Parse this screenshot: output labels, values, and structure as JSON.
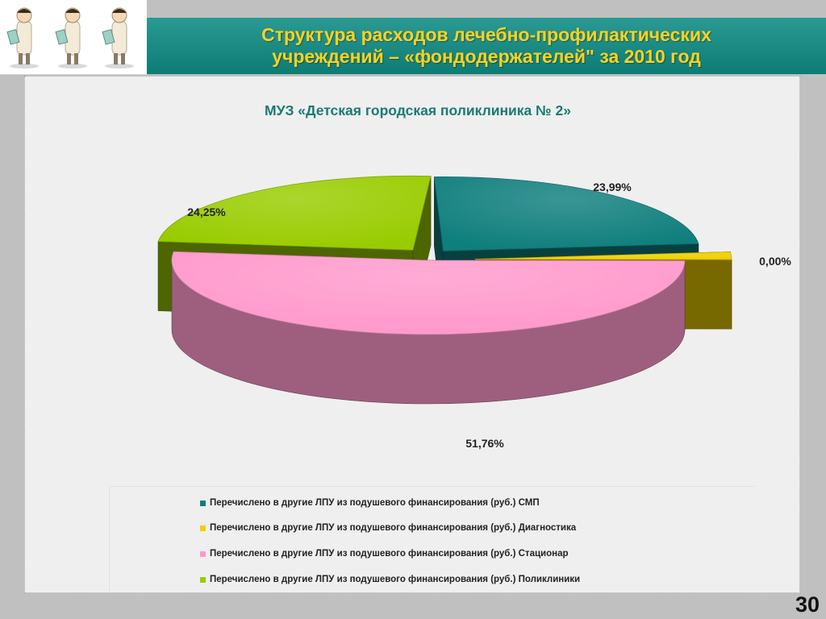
{
  "header": {
    "title_line1": "Структура расходов лечебно-профилактических",
    "title_line2": "учреждений – «фондодержателей\" за 2010 год"
  },
  "logo": {
    "icon": "doctor-figure-icon",
    "count": 3
  },
  "colors": {
    "title_bar": "#0d7c75",
    "title_text": "#ffd21f",
    "chart_title": "#1a7a73"
  },
  "chart_data": {
    "type": "pie",
    "style": "3d-exploded",
    "title": "МУЗ «Детская городская поликлиника № 2»",
    "categories": [
      "Перечислено в другие ЛПУ из подушевого финансирования (руб.) СМП",
      "Перечислено в другие ЛПУ из подушевого финансирования (руб.) Диагностика",
      "Перечислено в другие ЛПУ из подушевого финансирования (руб.) Стационар",
      "Перечислено в другие ЛПУ из подушевого финансирования (руб.) Поликлиники"
    ],
    "values": [
      23.99,
      0.0,
      51.76,
      24.25
    ],
    "data_labels": [
      "23,99%",
      "0,00%",
      "51,76%",
      "24,25%"
    ],
    "unit": "%",
    "colors": [
      "#0f7f7d",
      "#f0d000",
      "#ff99cc",
      "#99cc00"
    ],
    "legend_position": "bottom"
  },
  "footer": {
    "page_number": "30"
  }
}
